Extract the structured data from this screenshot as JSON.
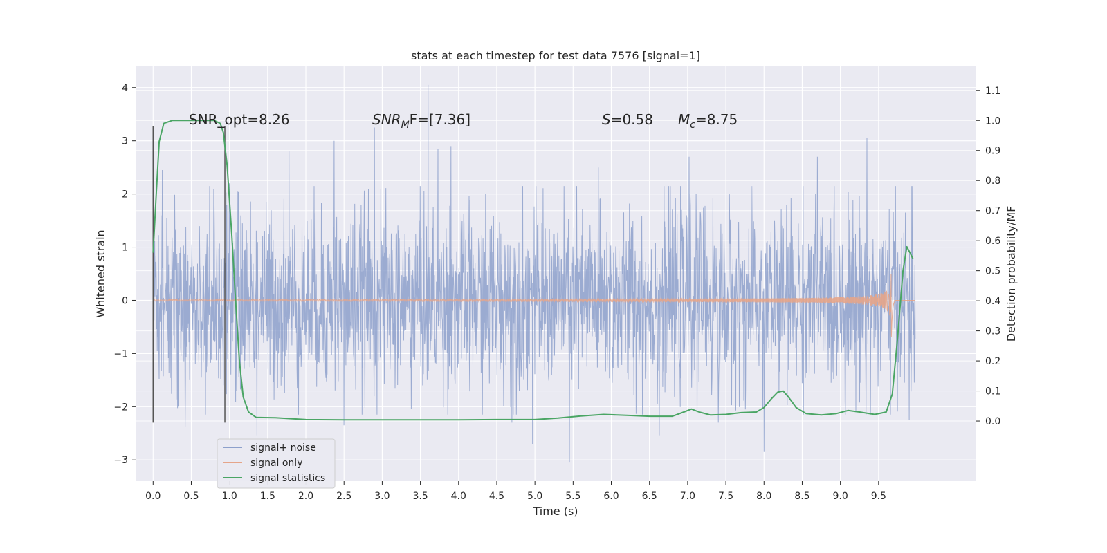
{
  "chart_data": {
    "type": "line",
    "title": "stats at each timestep for test data 7576 [signal=1]",
    "xlabel": "Time (s)",
    "ylabel": "Whitened strain",
    "ylabel_right": "Detection probability/MF",
    "xlim": [
      -0.22,
      10.77
    ],
    "ylim": [
      -3.4,
      4.4
    ],
    "ylim_right": [
      -0.2,
      1.18
    ],
    "x_ticks": [
      "0.0",
      "0.5",
      "1.0",
      "1.5",
      "2.0",
      "2.5",
      "3.0",
      "3.5",
      "4.0",
      "4.5",
      "5.0",
      "5.5",
      "6.0",
      "6.5",
      "7.0",
      "7.5",
      "8.0",
      "8.5",
      "9.0",
      "9.5"
    ],
    "y_ticks": [
      "4",
      "3",
      "2",
      "1",
      "0",
      "−1",
      "−2",
      "−3"
    ],
    "y_ticks_right": [
      "1.1",
      "1.0",
      "0.9",
      "0.8",
      "0.7",
      "0.6",
      "0.5",
      "0.4",
      "0.3",
      "0.2",
      "0.1",
      "0.0"
    ],
    "grid": true,
    "legend_position": "lower-left",
    "annotations": {
      "snr_opt": "SNR_opt=8.26",
      "snr_mf_base": "SNR",
      "snr_mf_sub": "M",
      "snr_mf_rest": "F=[7.36]",
      "s_italic": "S",
      "s_value": "=0.58",
      "mc_base": "M",
      "mc_sub": "c",
      "mc_value": "=8.75"
    },
    "vertical_lines": [
      {
        "x": 0.0,
        "ymin": -2.3,
        "ymax": 3.28
      },
      {
        "x": 0.94,
        "ymin": -2.3,
        "ymax": 3.28
      }
    ],
    "series": [
      {
        "name": "signal+ noise",
        "color": "#8da0cb",
        "axis": "left",
        "time_range": [
          0.0,
          9.98
        ],
        "noise_sigma": 0.85,
        "peaks": [
          {
            "x": 0.12,
            "y": 2.45
          },
          {
            "x": 0.33,
            "y": -2.0
          },
          {
            "x": 0.42,
            "y": -2.38
          },
          {
            "x": 1.0,
            "y": 2.2
          },
          {
            "x": 1.36,
            "y": -2.55
          },
          {
            "x": 1.78,
            "y": 2.8
          },
          {
            "x": 2.37,
            "y": 3.0
          },
          {
            "x": 2.5,
            "y": -2.35
          },
          {
            "x": 2.9,
            "y": 3.25
          },
          {
            "x": 3.6,
            "y": 4.05
          },
          {
            "x": 3.73,
            "y": 2.85
          },
          {
            "x": 3.9,
            "y": 2.9
          },
          {
            "x": 4.7,
            "y": -2.3
          },
          {
            "x": 4.97,
            "y": -2.7
          },
          {
            "x": 5.45,
            "y": -3.05
          },
          {
            "x": 5.83,
            "y": 2.5
          },
          {
            "x": 6.63,
            "y": -2.55
          },
          {
            "x": 7.02,
            "y": 2.7
          },
          {
            "x": 7.4,
            "y": -2.3
          },
          {
            "x": 8.0,
            "y": -2.85
          },
          {
            "x": 8.7,
            "y": 2.7
          },
          {
            "x": 9.35,
            "y": 3.05
          },
          {
            "x": 9.9,
            "y": -2.25
          }
        ]
      },
      {
        "name": "signal only",
        "color": "#e5a58a",
        "axis": "left",
        "time_range": [
          0.0,
          9.98
        ],
        "chirp_end": 9.67,
        "peak_amplitude": 0.75
      },
      {
        "name": "signal statistics",
        "color": "#4aa564",
        "axis": "right",
        "points": [
          [
            0.0,
            0.56
          ],
          [
            0.04,
            0.75
          ],
          [
            0.08,
            0.93
          ],
          [
            0.14,
            0.99
          ],
          [
            0.25,
            1.0
          ],
          [
            0.5,
            1.0
          ],
          [
            0.8,
            1.0
          ],
          [
            0.88,
            0.99
          ],
          [
            0.92,
            0.96
          ],
          [
            0.97,
            0.85
          ],
          [
            1.03,
            0.62
          ],
          [
            1.08,
            0.4
          ],
          [
            1.13,
            0.2
          ],
          [
            1.18,
            0.08
          ],
          [
            1.25,
            0.03
          ],
          [
            1.35,
            0.012
          ],
          [
            1.6,
            0.011
          ],
          [
            2.0,
            0.005
          ],
          [
            2.5,
            0.004
          ],
          [
            3.0,
            0.004
          ],
          [
            3.5,
            0.004
          ],
          [
            4.0,
            0.004
          ],
          [
            4.5,
            0.005
          ],
          [
            5.0,
            0.005
          ],
          [
            5.3,
            0.01
          ],
          [
            5.6,
            0.017
          ],
          [
            5.9,
            0.022
          ],
          [
            6.2,
            0.019
          ],
          [
            6.5,
            0.016
          ],
          [
            6.8,
            0.016
          ],
          [
            6.95,
            0.03
          ],
          [
            7.05,
            0.04
          ],
          [
            7.15,
            0.03
          ],
          [
            7.3,
            0.02
          ],
          [
            7.5,
            0.022
          ],
          [
            7.7,
            0.028
          ],
          [
            7.9,
            0.03
          ],
          [
            8.0,
            0.045
          ],
          [
            8.1,
            0.075
          ],
          [
            8.18,
            0.096
          ],
          [
            8.25,
            0.1
          ],
          [
            8.32,
            0.08
          ],
          [
            8.42,
            0.045
          ],
          [
            8.55,
            0.025
          ],
          [
            8.75,
            0.02
          ],
          [
            8.95,
            0.025
          ],
          [
            9.1,
            0.035
          ],
          [
            9.25,
            0.03
          ],
          [
            9.45,
            0.022
          ],
          [
            9.6,
            0.03
          ],
          [
            9.68,
            0.09
          ],
          [
            9.75,
            0.28
          ],
          [
            9.82,
            0.5
          ],
          [
            9.87,
            0.58
          ],
          [
            9.91,
            0.56
          ],
          [
            9.95,
            0.54
          ]
        ]
      }
    ]
  }
}
